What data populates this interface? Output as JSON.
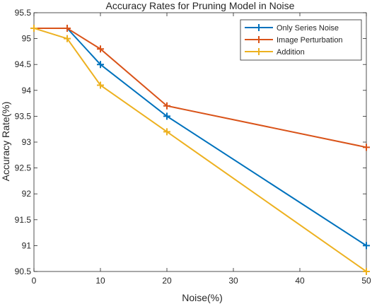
{
  "chart_data": {
    "type": "line",
    "title": "Accuracy Rates for Pruning Model in Noise",
    "xlabel": "Noise(%)",
    "ylabel": "Accuracy Rate(%)",
    "x": [
      0,
      5,
      10,
      20,
      50
    ],
    "xlim": [
      0,
      50
    ],
    "ylim": [
      90.5,
      95.5
    ],
    "xticks": [
      0,
      10,
      20,
      30,
      40,
      50
    ],
    "yticks": [
      90.5,
      91,
      91.5,
      92,
      92.5,
      93,
      93.5,
      94,
      94.5,
      95,
      95.5
    ],
    "xtick_labels": [
      "0",
      "10",
      "20",
      "30",
      "40",
      "50"
    ],
    "ytick_labels": [
      "90.5",
      "91",
      "91.5",
      "92",
      "92.5",
      "93",
      "93.5",
      "94",
      "94.5",
      "95",
      "95.5"
    ],
    "grid": false,
    "legend_position": "top-right",
    "marker": "+",
    "series": [
      {
        "name": "Only Series Noise",
        "color": "#0072BD",
        "values": [
          95.2,
          95.2,
          94.5,
          93.5,
          91.0
        ]
      },
      {
        "name": "Image Perturbation",
        "color": "#D95319",
        "values": [
          95.2,
          95.2,
          94.8,
          93.7,
          92.9
        ]
      },
      {
        "name": "Addition",
        "color": "#EDB120",
        "values": [
          95.2,
          95.0,
          94.1,
          93.2,
          90.5
        ]
      }
    ]
  }
}
